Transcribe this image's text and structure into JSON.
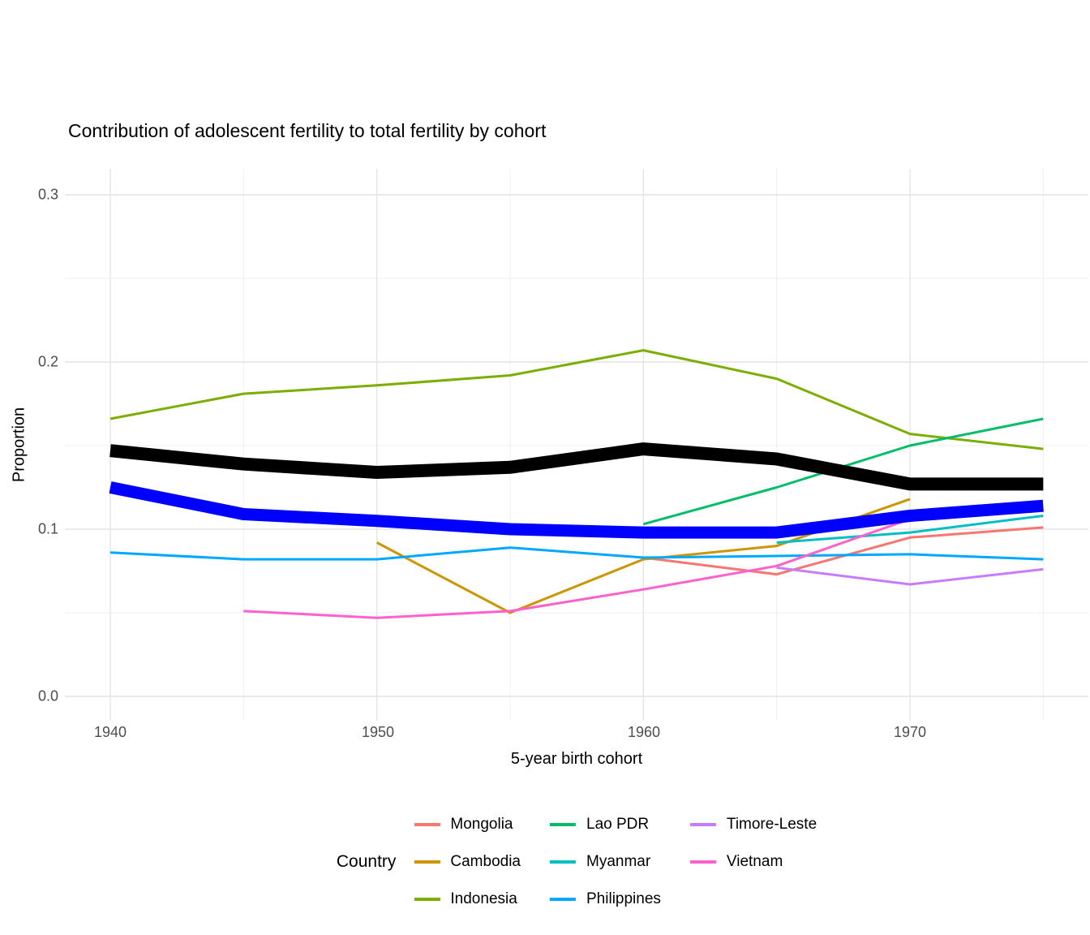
{
  "title": "Contribution of adolescent fertility to total fertility by cohort",
  "y_axis": {
    "label": "Proportion",
    "tick_labels": [
      "0.0",
      "0.1",
      "0.2",
      "0.3"
    ],
    "tick_values": [
      0.0,
      0.1,
      0.2,
      0.3
    ],
    "minor_values": [
      0.05,
      0.15,
      0.25
    ]
  },
  "x_axis": {
    "label": "5-year birth cohort",
    "tick_labels": [
      "1940",
      "1950",
      "1960",
      "1970"
    ],
    "tick_values": [
      1940,
      1950,
      1960,
      1970
    ],
    "minor_values": [
      1945,
      1955,
      1965,
      1975
    ]
  },
  "legend": {
    "title": "Country",
    "position": "bottom"
  },
  "chart_data": {
    "type": "line",
    "title": "Contribution of adolescent fertility to total fertility by cohort",
    "xlabel": "5-year birth cohort",
    "ylabel": "Proportion",
    "x": [
      1940,
      1945,
      1950,
      1955,
      1960,
      1965,
      1970,
      1975
    ],
    "xlim": [
      1938.3,
      1976.7
    ],
    "ylim": [
      -0.015,
      0.316
    ],
    "grid": "major+minor",
    "series": [
      {
        "name": "Mongolia",
        "color": "#F8766D",
        "values": [
          null,
          null,
          null,
          null,
          0.083,
          0.073,
          0.095,
          0.101
        ]
      },
      {
        "name": "Cambodia",
        "color": "#CD9600",
        "values": [
          null,
          null,
          0.092,
          0.05,
          0.082,
          0.09,
          0.118,
          null
        ]
      },
      {
        "name": "Indonesia",
        "color": "#7CAE00",
        "values": [
          0.166,
          0.181,
          0.186,
          0.192,
          0.207,
          0.19,
          0.157,
          0.148
        ]
      },
      {
        "name": "Lao PDR",
        "color": "#00BE67",
        "values": [
          null,
          null,
          null,
          null,
          0.103,
          0.125,
          0.15,
          0.166
        ]
      },
      {
        "name": "Myanmar",
        "color": "#00BFC4",
        "values": [
          null,
          null,
          null,
          null,
          null,
          0.092,
          0.098,
          0.108
        ]
      },
      {
        "name": "Philippines",
        "color": "#00A9FF",
        "values": [
          0.086,
          0.082,
          0.082,
          0.089,
          0.083,
          0.084,
          0.085,
          0.082
        ]
      },
      {
        "name": "Timore-Leste",
        "color": "#C77CFF",
        "values": [
          null,
          null,
          null,
          null,
          null,
          0.077,
          0.067,
          0.076
        ]
      },
      {
        "name": "Vietnam",
        "color": "#FF61CC",
        "values": [
          null,
          0.051,
          0.047,
          0.051,
          0.064,
          0.078,
          0.106,
          0.112
        ]
      }
    ],
    "overlay_series": [
      {
        "name": "unlabeled-thick-black-line",
        "color": "#000000",
        "stroke_width": 16,
        "values": [
          0.147,
          0.139,
          0.134,
          0.137,
          0.148,
          0.142,
          0.127,
          0.127
        ]
      },
      {
        "name": "unlabeled-thick-blue-line",
        "color": "#0000FF",
        "stroke_width": 15,
        "values": [
          0.125,
          0.109,
          0.105,
          0.1,
          0.098,
          0.098,
          0.108,
          0.114
        ]
      }
    ],
    "grid_colors": {
      "major": "#E4E4E4",
      "minor": "#EFEFEF"
    }
  }
}
